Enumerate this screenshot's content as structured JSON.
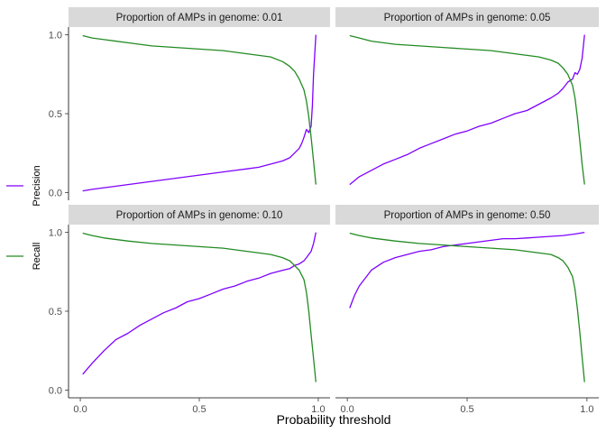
{
  "chart_data": {
    "type": "line",
    "xlabel": "Probability threshold",
    "ylabel": "",
    "xlim": [
      0,
      1
    ],
    "ylim": [
      0,
      1
    ],
    "x_ticks": [
      0.0,
      0.5,
      1.0
    ],
    "x_tick_labels": [
      "0.0",
      "0.5",
      "1.0"
    ],
    "y_ticks": [
      0.0,
      0.5,
      1.0
    ],
    "y_tick_labels": [
      "0.0",
      "0.5",
      "1.0"
    ],
    "grid": false,
    "legend_position": "left",
    "legend": [
      {
        "name": "Precision",
        "color": "#7f00ff"
      },
      {
        "name": "Recall",
        "color": "#228b22"
      }
    ],
    "panels": [
      {
        "strip": "Proportion of AMPs in genome: 0.01",
        "series": [
          {
            "name": "Precision",
            "color": "#7f00ff",
            "x": [
              0.01,
              0.05,
              0.1,
              0.15,
              0.2,
              0.25,
              0.3,
              0.35,
              0.4,
              0.45,
              0.5,
              0.55,
              0.6,
              0.65,
              0.7,
              0.75,
              0.8,
              0.85,
              0.88,
              0.9,
              0.92,
              0.93,
              0.94,
              0.95,
              0.96,
              0.97,
              0.975,
              0.98,
              0.99
            ],
            "y": [
              0.01,
              0.02,
              0.03,
              0.04,
              0.05,
              0.06,
              0.07,
              0.08,
              0.09,
              0.1,
              0.11,
              0.12,
              0.13,
              0.14,
              0.15,
              0.16,
              0.18,
              0.2,
              0.22,
              0.25,
              0.28,
              0.31,
              0.35,
              0.4,
              0.38,
              0.42,
              0.55,
              0.75,
              1.0
            ]
          },
          {
            "name": "Recall",
            "color": "#228b22",
            "x": [
              0.01,
              0.05,
              0.1,
              0.2,
              0.3,
              0.4,
              0.5,
              0.6,
              0.7,
              0.75,
              0.8,
              0.85,
              0.88,
              0.9,
              0.92,
              0.94,
              0.95,
              0.96,
              0.97,
              0.98,
              0.99
            ],
            "y": [
              0.995,
              0.98,
              0.97,
              0.95,
              0.93,
              0.92,
              0.91,
              0.9,
              0.88,
              0.87,
              0.86,
              0.83,
              0.8,
              0.77,
              0.72,
              0.65,
              0.58,
              0.48,
              0.35,
              0.2,
              0.05
            ]
          }
        ]
      },
      {
        "strip": "Proportion of AMPs in genome: 0.05",
        "series": [
          {
            "name": "Precision",
            "color": "#7f00ff",
            "x": [
              0.01,
              0.05,
              0.1,
              0.15,
              0.2,
              0.25,
              0.3,
              0.35,
              0.4,
              0.45,
              0.5,
              0.55,
              0.6,
              0.65,
              0.7,
              0.75,
              0.8,
              0.85,
              0.88,
              0.9,
              0.92,
              0.94,
              0.95,
              0.96,
              0.97,
              0.98,
              0.99
            ],
            "y": [
              0.05,
              0.1,
              0.14,
              0.18,
              0.21,
              0.24,
              0.28,
              0.31,
              0.34,
              0.37,
              0.39,
              0.42,
              0.44,
              0.47,
              0.5,
              0.52,
              0.56,
              0.6,
              0.63,
              0.66,
              0.7,
              0.72,
              0.76,
              0.75,
              0.78,
              0.85,
              1.0
            ]
          },
          {
            "name": "Recall",
            "color": "#228b22",
            "x": [
              0.01,
              0.05,
              0.1,
              0.2,
              0.3,
              0.4,
              0.5,
              0.6,
              0.7,
              0.75,
              0.8,
              0.85,
              0.88,
              0.9,
              0.92,
              0.94,
              0.95,
              0.96,
              0.97,
              0.98,
              0.99
            ],
            "y": [
              0.995,
              0.98,
              0.96,
              0.94,
              0.93,
              0.92,
              0.91,
              0.9,
              0.88,
              0.87,
              0.86,
              0.84,
              0.82,
              0.79,
              0.75,
              0.68,
              0.6,
              0.48,
              0.33,
              0.18,
              0.05
            ]
          }
        ]
      },
      {
        "strip": "Proportion of AMPs in genome: 0.10",
        "series": [
          {
            "name": "Precision",
            "color": "#7f00ff",
            "x": [
              0.01,
              0.05,
              0.1,
              0.15,
              0.2,
              0.25,
              0.3,
              0.35,
              0.4,
              0.45,
              0.5,
              0.55,
              0.6,
              0.65,
              0.7,
              0.75,
              0.8,
              0.85,
              0.88,
              0.9,
              0.92,
              0.94,
              0.95,
              0.96,
              0.97,
              0.98,
              0.99
            ],
            "y": [
              0.1,
              0.17,
              0.25,
              0.32,
              0.36,
              0.41,
              0.45,
              0.49,
              0.52,
              0.56,
              0.58,
              0.61,
              0.64,
              0.66,
              0.69,
              0.71,
              0.74,
              0.76,
              0.77,
              0.79,
              0.8,
              0.82,
              0.84,
              0.86,
              0.88,
              0.93,
              1.0
            ]
          },
          {
            "name": "Recall",
            "color": "#228b22",
            "x": [
              0.01,
              0.05,
              0.1,
              0.2,
              0.3,
              0.4,
              0.5,
              0.6,
              0.7,
              0.75,
              0.8,
              0.85,
              0.88,
              0.9,
              0.92,
              0.94,
              0.95,
              0.96,
              0.97,
              0.98,
              0.99
            ],
            "y": [
              0.995,
              0.98,
              0.965,
              0.945,
              0.93,
              0.92,
              0.91,
              0.9,
              0.88,
              0.87,
              0.86,
              0.84,
              0.82,
              0.79,
              0.76,
              0.7,
              0.62,
              0.5,
              0.35,
              0.2,
              0.05
            ]
          }
        ]
      },
      {
        "strip": "Proportion of AMPs in genome: 0.50",
        "series": [
          {
            "name": "Precision",
            "color": "#7f00ff",
            "x": [
              0.01,
              0.03,
              0.05,
              0.08,
              0.1,
              0.15,
              0.2,
              0.25,
              0.3,
              0.35,
              0.4,
              0.45,
              0.5,
              0.55,
              0.6,
              0.65,
              0.7,
              0.75,
              0.8,
              0.85,
              0.9,
              0.95,
              0.99
            ],
            "y": [
              0.52,
              0.6,
              0.66,
              0.72,
              0.76,
              0.81,
              0.84,
              0.86,
              0.88,
              0.89,
              0.91,
              0.92,
              0.93,
              0.94,
              0.95,
              0.96,
              0.96,
              0.965,
              0.97,
              0.975,
              0.98,
              0.99,
              1.0
            ]
          },
          {
            "name": "Recall",
            "color": "#228b22",
            "x": [
              0.01,
              0.05,
              0.1,
              0.2,
              0.3,
              0.4,
              0.5,
              0.6,
              0.7,
              0.75,
              0.8,
              0.85,
              0.88,
              0.9,
              0.92,
              0.94,
              0.95,
              0.96,
              0.97,
              0.98,
              0.99
            ],
            "y": [
              0.995,
              0.98,
              0.965,
              0.945,
              0.93,
              0.92,
              0.91,
              0.9,
              0.89,
              0.88,
              0.87,
              0.86,
              0.84,
              0.82,
              0.78,
              0.72,
              0.64,
              0.52,
              0.37,
              0.21,
              0.05
            ]
          }
        ]
      }
    ]
  }
}
